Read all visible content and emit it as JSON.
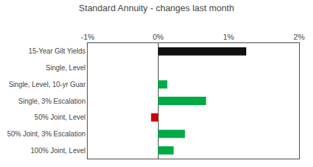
{
  "chart_data": {
    "type": "bar",
    "orientation": "horizontal",
    "title": "Standard Annuity - changes last month",
    "categories": [
      "15-Year Gilt Yields",
      "Single, Level",
      "Single, Level, 10-yr Guar",
      "Single, 3% Escalation",
      "50% Joint, Level",
      "50% Joint, 3% Escalation",
      "100% Joint, Level"
    ],
    "values": [
      1.25,
      0.0,
      0.13,
      0.68,
      -0.1,
      0.38,
      0.22
    ],
    "colors": [
      "#111111",
      "#00aa44",
      "#00aa44",
      "#00aa44",
      "#cc0000",
      "#00aa44",
      "#00aa44"
    ],
    "xlim": [
      -1.0,
      2.0
    ],
    "xticks": [
      {
        "value": -1.0,
        "label": "-1%"
      },
      {
        "value": 0.0,
        "label": "0%"
      },
      {
        "value": 1.0,
        "label": "1%"
      },
      {
        "value": 2.0,
        "label": "2%"
      }
    ],
    "grid": false
  }
}
